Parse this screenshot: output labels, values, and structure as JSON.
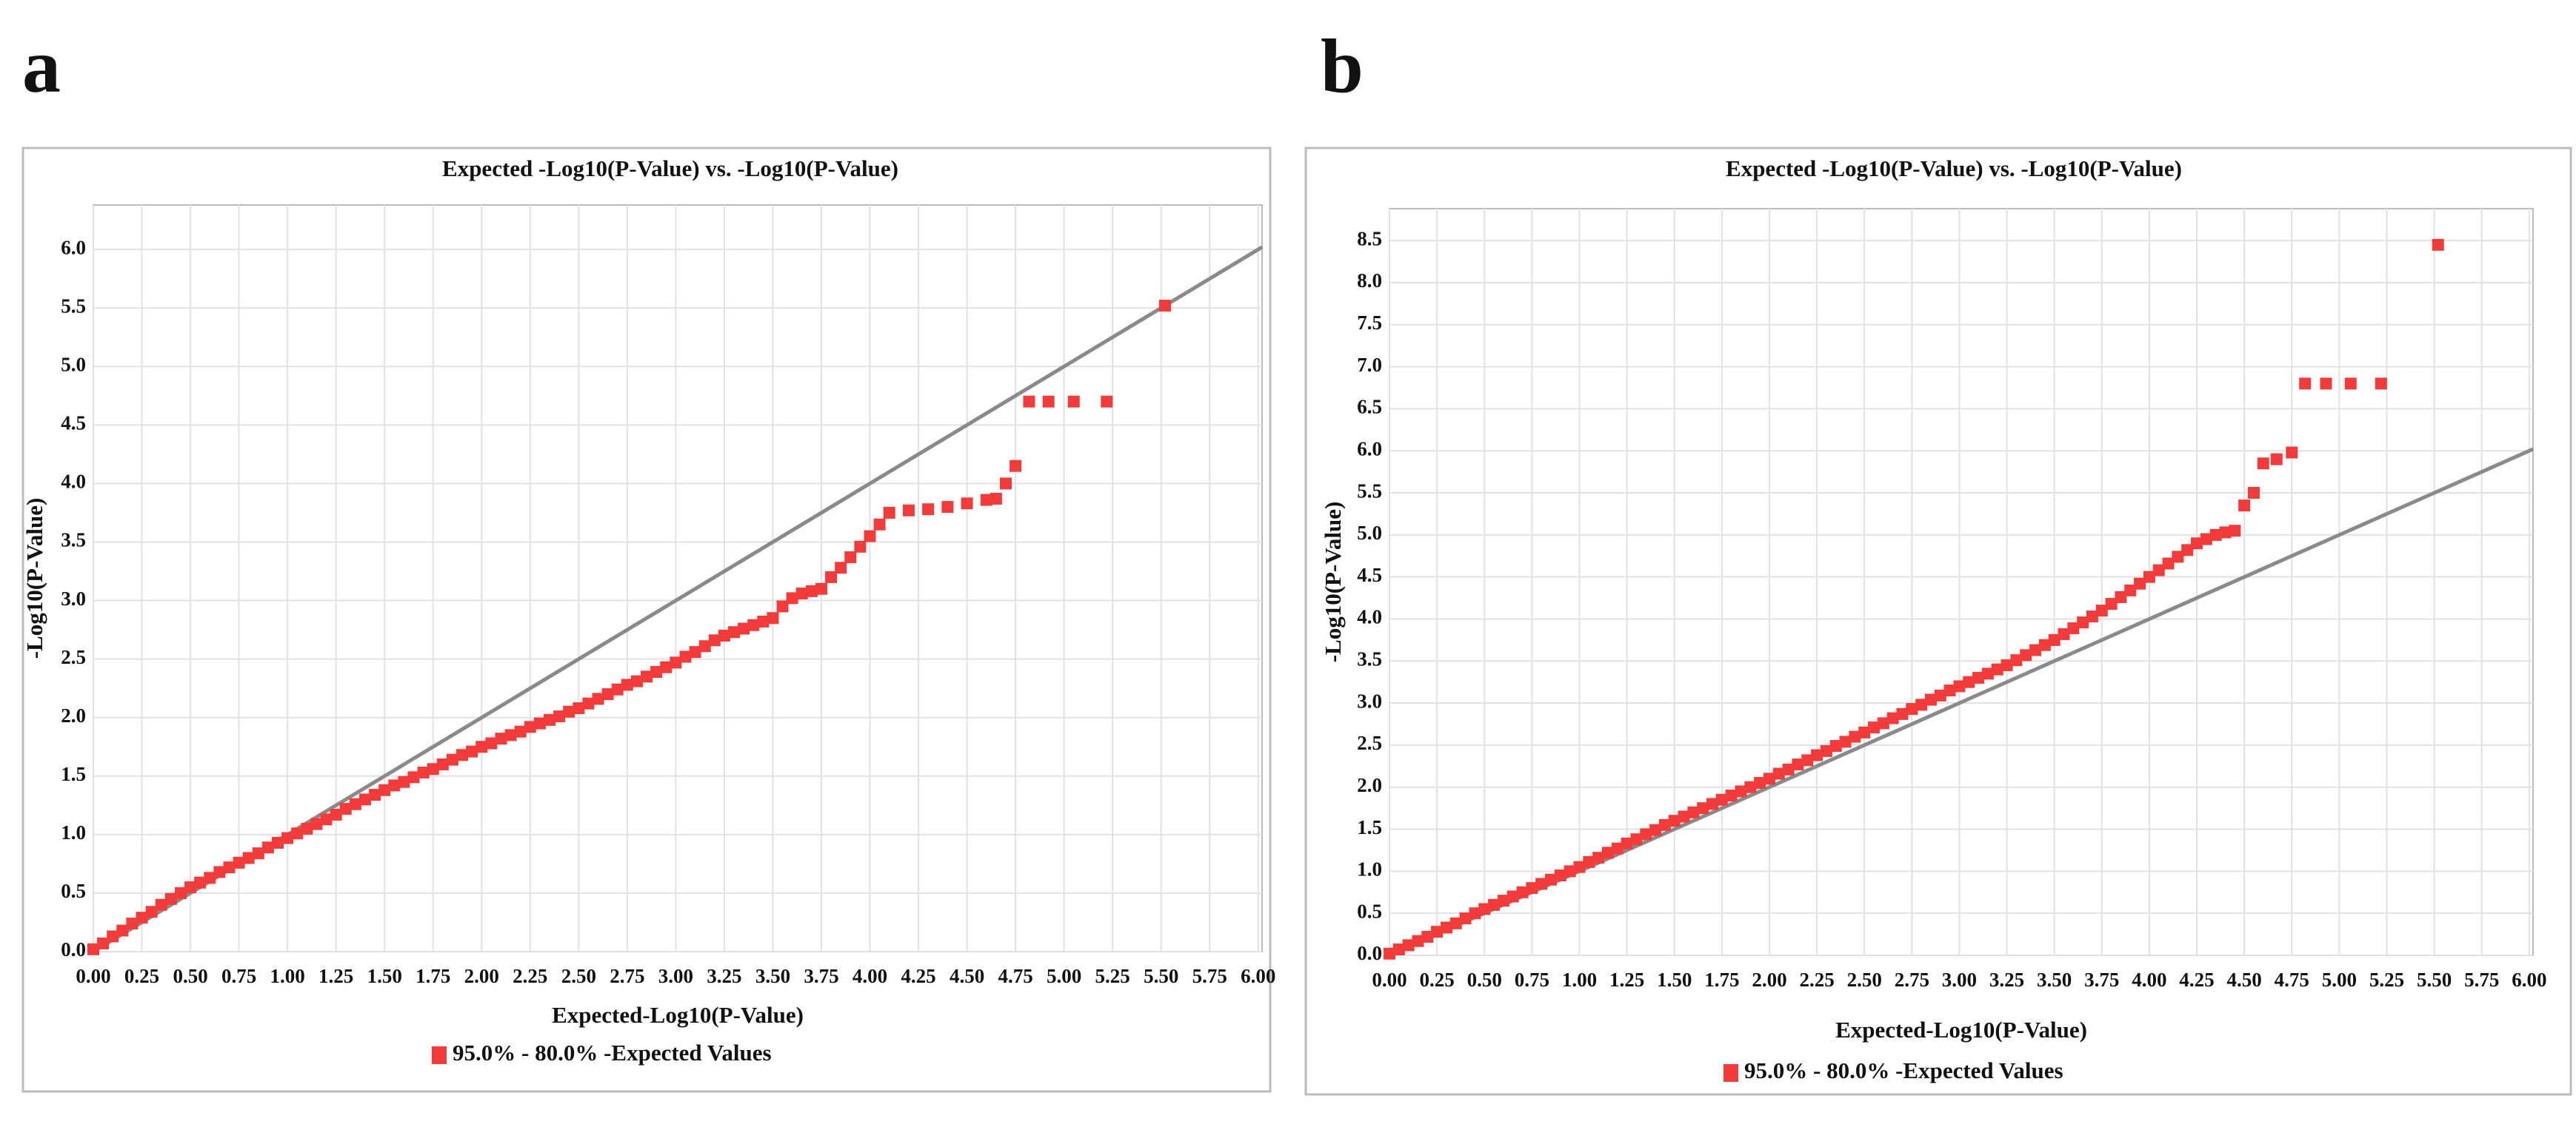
{
  "chart_data": [
    {
      "type": "scatter",
      "panel": "a",
      "title": "Expected -Log10(P-Value) vs. -Log10(P-Value)",
      "x_label": "Expected-Log10(P-Value)",
      "y_label": "-Log10(P-Value)",
      "xlim": [
        0,
        6.02
      ],
      "ylim": [
        0,
        6.38
      ],
      "grid": true,
      "xticks": [
        {
          "value": 0,
          "label": "0.00"
        },
        {
          "value": 0.25,
          "label": "0.25"
        },
        {
          "value": 0.5,
          "label": "0.50"
        },
        {
          "value": 0.75,
          "label": "0.75"
        },
        {
          "value": 1,
          "label": "1.00"
        },
        {
          "value": 1.25,
          "label": "1.25"
        },
        {
          "value": 1.5,
          "label": "1.50"
        },
        {
          "value": 1.75,
          "label": "1.75"
        },
        {
          "value": 2,
          "label": "2.00"
        },
        {
          "value": 2.25,
          "label": "2.25"
        },
        {
          "value": 2.5,
          "label": "2.50"
        },
        {
          "value": 2.75,
          "label": "2.75"
        },
        {
          "value": 3,
          "label": "3.00"
        },
        {
          "value": 3.25,
          "label": "3.25"
        },
        {
          "value": 3.5,
          "label": "3.50"
        },
        {
          "value": 3.75,
          "label": "3.75"
        },
        {
          "value": 4,
          "label": "4.00"
        },
        {
          "value": 4.25,
          "label": "4.25"
        },
        {
          "value": 4.5,
          "label": "4.50"
        },
        {
          "value": 4.75,
          "label": "4.75"
        },
        {
          "value": 5,
          "label": "5.00"
        },
        {
          "value": 5.25,
          "label": "5.25"
        },
        {
          "value": 5.5,
          "label": "5.50"
        },
        {
          "value": 5.75,
          "label": "5.75"
        },
        {
          "value": 6,
          "label": "6.00"
        }
      ],
      "yticks": [
        {
          "value": 0,
          "label": "0.0"
        },
        0.5,
        {
          "value": 1,
          "label": "1.0"
        },
        1.5,
        {
          "value": 2,
          "label": "2.0"
        },
        2.5,
        {
          "value": 3,
          "label": "3.0"
        },
        3.5,
        {
          "value": 4,
          "label": "4.0"
        },
        4.5,
        {
          "value": 5,
          "label": "5.0"
        },
        5.5,
        {
          "value": 6,
          "label": "6.0"
        }
      ],
      "reference_line": {
        "color": "#8a8a8a",
        "x": [
          0,
          6.02
        ],
        "y": [
          0,
          6.02
        ]
      },
      "series": [
        {
          "name": "95.0% - 80.0% -Expected Values",
          "color": "#f23c3c",
          "x": [
            0,
            0.05,
            0.1,
            0.15,
            0.2,
            0.25,
            0.3,
            0.35,
            0.4,
            0.45,
            0.5,
            0.55,
            0.6,
            0.65,
            0.7,
            0.75,
            0.8,
            0.85,
            0.9,
            0.95,
            1,
            1.05,
            1.1,
            1.15,
            1.2,
            1.25,
            1.3,
            1.35,
            1.4,
            1.45,
            1.5,
            1.55,
            1.6,
            1.65,
            1.7,
            1.75,
            1.8,
            1.85,
            1.9,
            1.95,
            2,
            2.05,
            2.1,
            2.15,
            2.2,
            2.25,
            2.3,
            2.35,
            2.4,
            2.45,
            2.5,
            2.55,
            2.6,
            2.65,
            2.7,
            2.75,
            2.8,
            2.85,
            2.9,
            2.95,
            3,
            3.05,
            3.1,
            3.15,
            3.2,
            3.25,
            3.3,
            3.35,
            3.4,
            3.45,
            3.5,
            3.55,
            3.6,
            3.65,
            3.7,
            3.75,
            3.8,
            3.85,
            3.9,
            3.95,
            4,
            4.05,
            4.1,
            4.2,
            4.3,
            4.4,
            4.5,
            4.6,
            4.65,
            4.7,
            4.75,
            4.82,
            4.92,
            5.05,
            5.22,
            5.52
          ],
          "values": [
            0.02,
            0.07,
            0.13,
            0.18,
            0.24,
            0.29,
            0.34,
            0.4,
            0.45,
            0.5,
            0.55,
            0.59,
            0.63,
            0.68,
            0.72,
            0.76,
            0.8,
            0.84,
            0.89,
            0.93,
            0.97,
            1.01,
            1.05,
            1.09,
            1.13,
            1.17,
            1.22,
            1.26,
            1.3,
            1.34,
            1.38,
            1.42,
            1.45,
            1.49,
            1.53,
            1.56,
            1.6,
            1.64,
            1.68,
            1.71,
            1.75,
            1.78,
            1.82,
            1.85,
            1.88,
            1.92,
            1.95,
            1.98,
            2.01,
            2.05,
            2.08,
            2.12,
            2.16,
            2.2,
            2.24,
            2.28,
            2.31,
            2.35,
            2.39,
            2.43,
            2.47,
            2.52,
            2.56,
            2.61,
            2.66,
            2.7,
            2.73,
            2.76,
            2.79,
            2.82,
            2.85,
            2.95,
            3.02,
            3.06,
            3.08,
            3.1,
            3.2,
            3.28,
            3.37,
            3.46,
            3.55,
            3.65,
            3.75,
            3.77,
            3.78,
            3.8,
            3.83,
            3.86,
            3.87,
            4,
            4.15,
            4.7,
            4.7,
            4.7,
            4.7,
            5.52
          ]
        }
      ]
    },
    {
      "type": "scatter",
      "panel": "b",
      "title": "Expected -Log10(P-Value) vs. -Log10(P-Value)",
      "x_label": "Expected-Log10(P-Value)",
      "y_label": "-Log10(P-Value)",
      "xlim": [
        0,
        6.02
      ],
      "ylim": [
        0,
        8.88
      ],
      "grid": true,
      "xticks": [
        {
          "value": 0,
          "label": "0.00"
        },
        {
          "value": 0.25,
          "label": "0.25"
        },
        {
          "value": 0.5,
          "label": "0.50"
        },
        {
          "value": 0.75,
          "label": "0.75"
        },
        {
          "value": 1,
          "label": "1.00"
        },
        {
          "value": 1.25,
          "label": "1.25"
        },
        {
          "value": 1.5,
          "label": "1.50"
        },
        {
          "value": 1.75,
          "label": "1.75"
        },
        {
          "value": 2,
          "label": "2.00"
        },
        {
          "value": 2.25,
          "label": "2.25"
        },
        {
          "value": 2.5,
          "label": "2.50"
        },
        {
          "value": 2.75,
          "label": "2.75"
        },
        {
          "value": 3,
          "label": "3.00"
        },
        {
          "value": 3.25,
          "label": "3.25"
        },
        {
          "value": 3.5,
          "label": "3.50"
        },
        {
          "value": 3.75,
          "label": "3.75"
        },
        {
          "value": 4,
          "label": "4.00"
        },
        {
          "value": 4.25,
          "label": "4.25"
        },
        {
          "value": 4.5,
          "label": "4.50"
        },
        {
          "value": 4.75,
          "label": "4.75"
        },
        {
          "value": 5,
          "label": "5.00"
        },
        {
          "value": 5.25,
          "label": "5.25"
        },
        {
          "value": 5.5,
          "label": "5.50"
        },
        {
          "value": 5.75,
          "label": "5.75"
        },
        {
          "value": 6,
          "label": "6.00"
        }
      ],
      "yticks": [
        {
          "value": 0,
          "label": "0.0"
        },
        0.5,
        {
          "value": 1,
          "label": "1.0"
        },
        1.5,
        {
          "value": 2,
          "label": "2.0"
        },
        2.5,
        {
          "value": 3,
          "label": "3.0"
        },
        3.5,
        {
          "value": 4,
          "label": "4.0"
        },
        4.5,
        {
          "value": 5,
          "label": "5.0"
        },
        5.5,
        {
          "value": 6,
          "label": "6.0"
        },
        6.5,
        {
          "value": 7,
          "label": "7.0"
        },
        7.5,
        {
          "value": 8,
          "label": "8.0"
        },
        8.5
      ],
      "reference_line": {
        "color": "#8a8a8a",
        "x": [
          0,
          6.02
        ],
        "y": [
          0,
          6.02
        ]
      },
      "series": [
        {
          "name": "95.0% - 80.0% -Expected Values",
          "color": "#f23c3c",
          "x": [
            0,
            0.05,
            0.1,
            0.15,
            0.2,
            0.25,
            0.3,
            0.35,
            0.4,
            0.45,
            0.5,
            0.55,
            0.6,
            0.65,
            0.7,
            0.75,
            0.8,
            0.85,
            0.9,
            0.95,
            1,
            1.05,
            1.1,
            1.15,
            1.2,
            1.25,
            1.3,
            1.35,
            1.4,
            1.45,
            1.5,
            1.55,
            1.6,
            1.65,
            1.7,
            1.75,
            1.8,
            1.85,
            1.9,
            1.95,
            2,
            2.05,
            2.1,
            2.15,
            2.2,
            2.25,
            2.3,
            2.35,
            2.4,
            2.45,
            2.5,
            2.55,
            2.6,
            2.65,
            2.7,
            2.75,
            2.8,
            2.85,
            2.9,
            2.95,
            3,
            3.05,
            3.1,
            3.15,
            3.2,
            3.25,
            3.3,
            3.35,
            3.4,
            3.45,
            3.5,
            3.55,
            3.6,
            3.65,
            3.7,
            3.75,
            3.8,
            3.85,
            3.9,
            3.95,
            4,
            4.05,
            4.1,
            4.15,
            4.2,
            4.25,
            4.3,
            4.35,
            4.4,
            4.45,
            4.5,
            4.55,
            4.6,
            4.67,
            4.75,
            4.82,
            4.93,
            5.06,
            5.22,
            5.52
          ],
          "values": [
            0.02,
            0.07,
            0.12,
            0.17,
            0.22,
            0.28,
            0.33,
            0.38,
            0.44,
            0.5,
            0.55,
            0.6,
            0.65,
            0.7,
            0.75,
            0.8,
            0.85,
            0.9,
            0.95,
            1,
            1.05,
            1.11,
            1.16,
            1.22,
            1.27,
            1.33,
            1.38,
            1.44,
            1.49,
            1.55,
            1.6,
            1.65,
            1.7,
            1.75,
            1.8,
            1.85,
            1.9,
            1.95,
            2,
            2.05,
            2.1,
            2.16,
            2.21,
            2.27,
            2.32,
            2.38,
            2.43,
            2.49,
            2.54,
            2.6,
            2.65,
            2.71,
            2.76,
            2.82,
            2.87,
            2.93,
            2.98,
            3.04,
            3.09,
            3.15,
            3.2,
            3.25,
            3.3,
            3.35,
            3.4,
            3.45,
            3.51,
            3.57,
            3.63,
            3.69,
            3.75,
            3.82,
            3.89,
            3.96,
            4.03,
            4.1,
            4.18,
            4.26,
            4.34,
            4.42,
            4.5,
            4.58,
            4.66,
            4.74,
            4.82,
            4.9,
            4.95,
            5,
            5.03,
            5.05,
            5.35,
            5.5,
            5.85,
            5.9,
            5.98,
            6.8,
            6.8,
            6.8,
            6.8,
            8.45
          ]
        }
      ]
    }
  ]
}
